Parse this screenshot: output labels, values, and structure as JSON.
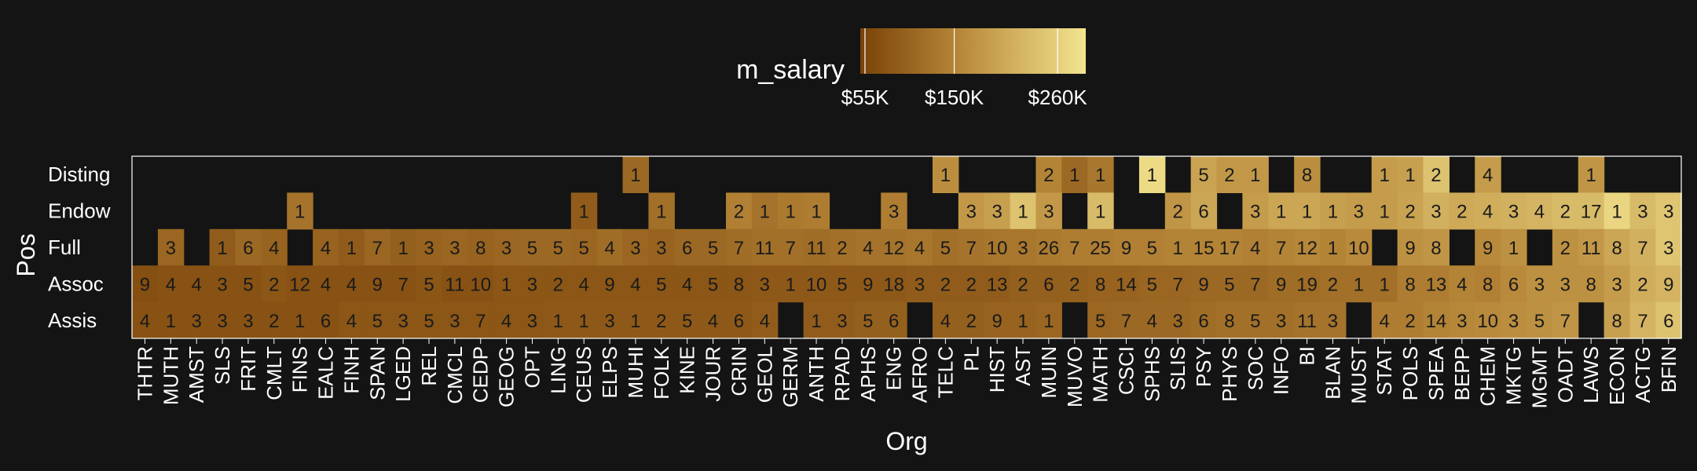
{
  "chart_data": {
    "type": "heatmap",
    "title": "",
    "xlabel": "Org",
    "ylabel": "Pos",
    "legend": {
      "title": "m_salary",
      "position": "top",
      "ticks": [
        {
          "value": 55000,
          "label": "$55K"
        },
        {
          "value": 150000,
          "label": "$150K"
        },
        {
          "value": 260000,
          "label": "$260K"
        }
      ],
      "range": [
        50000,
        290000
      ]
    },
    "colors": {
      "low": "#7a4208",
      "mid": "#b8893a",
      "high": "#f3e48f",
      "background": "#141414",
      "text": "#ffffff",
      "cell_text": "#1a1a1a"
    },
    "x": [
      "THTR",
      "MUTH",
      "AMST",
      "SLS",
      "FRIT",
      "CMLT",
      "FINS",
      "EALC",
      "FINH",
      "SPAN",
      "LGED",
      "REL",
      "CMCL",
      "CEDP",
      "GEOG",
      "OPT",
      "LING",
      "CEUS",
      "ELPS",
      "MUHI",
      "FOLK",
      "KINE",
      "JOUR",
      "CRIN",
      "GEOL",
      "GERM",
      "ANTH",
      "RPAD",
      "APHS",
      "ENG",
      "AFRO",
      "TELC",
      "PL",
      "HIST",
      "AST",
      "MUIN",
      "MUVO",
      "MATH",
      "CSCI",
      "SPHS",
      "SLIS",
      "PSY",
      "PHYS",
      "SOC",
      "INFO",
      "BI",
      "BLAN",
      "MUST",
      "STAT",
      "POLS",
      "SPEA",
      "BEPP",
      "CHEM",
      "MKTG",
      "MGMT",
      "OADT",
      "LAWS",
      "ECON",
      "ACTG",
      "BFIN"
    ],
    "y": [
      "Disting",
      "Endow",
      "Full",
      "Assoc",
      "Assis"
    ],
    "counts": {
      "Disting": [
        null,
        null,
        null,
        null,
        null,
        null,
        null,
        null,
        null,
        null,
        null,
        null,
        null,
        null,
        null,
        null,
        null,
        null,
        null,
        1,
        null,
        null,
        null,
        null,
        null,
        null,
        null,
        null,
        null,
        null,
        null,
        1,
        null,
        null,
        null,
        2,
        1,
        1,
        null,
        1,
        null,
        5,
        2,
        1,
        null,
        8,
        null,
        null,
        1,
        1,
        2,
        null,
        4,
        null,
        null,
        null,
        1,
        null,
        null,
        null
      ],
      "Endow": [
        null,
        null,
        null,
        null,
        null,
        null,
        1,
        null,
        null,
        null,
        null,
        null,
        null,
        null,
        null,
        null,
        null,
        1,
        null,
        null,
        1,
        null,
        null,
        2,
        1,
        1,
        1,
        null,
        null,
        3,
        null,
        null,
        3,
        3,
        1,
        3,
        null,
        1,
        null,
        null,
        2,
        6,
        null,
        3,
        1,
        1,
        1,
        3,
        1,
        2,
        3,
        2,
        4,
        3,
        4,
        2,
        17,
        1,
        3,
        3
      ],
      "Full": [
        null,
        3,
        null,
        1,
        6,
        4,
        null,
        4,
        1,
        7,
        1,
        3,
        3,
        8,
        3,
        5,
        5,
        5,
        4,
        3,
        3,
        6,
        5,
        7,
        11,
        7,
        11,
        2,
        4,
        12,
        4,
        5,
        7,
        10,
        3,
        26,
        7,
        25,
        9,
        5,
        1,
        15,
        17,
        4,
        7,
        12,
        1,
        10,
        null,
        9,
        8,
        null,
        9,
        1,
        null,
        2,
        11,
        8,
        7,
        3
      ],
      "Assoc": [
        9,
        4,
        4,
        3,
        5,
        2,
        12,
        4,
        4,
        9,
        7,
        5,
        11,
        10,
        1,
        3,
        2,
        4,
        9,
        4,
        5,
        4,
        5,
        8,
        3,
        1,
        10,
        5,
        9,
        18,
        3,
        2,
        2,
        13,
        2,
        6,
        2,
        8,
        14,
        5,
        7,
        9,
        5,
        7,
        9,
        19,
        2,
        1,
        1,
        8,
        13,
        4,
        8,
        6,
        3,
        3,
        8,
        3,
        2,
        9
      ],
      "Assis": [
        4,
        1,
        3,
        3,
        3,
        2,
        1,
        6,
        4,
        5,
        3,
        5,
        3,
        7,
        4,
        3,
        1,
        1,
        3,
        1,
        2,
        5,
        4,
        6,
        4,
        null,
        1,
        3,
        5,
        6,
        null,
        4,
        2,
        9,
        1,
        1,
        null,
        5,
        7,
        4,
        3,
        6,
        8,
        5,
        3,
        11,
        3,
        null,
        4,
        2,
        14,
        3,
        10,
        3,
        5,
        7,
        null,
        8,
        7,
        6
      ]
    },
    "salary_k": {
      "Disting": [
        null,
        null,
        null,
        null,
        null,
        null,
        null,
        null,
        null,
        null,
        null,
        null,
        null,
        null,
        null,
        null,
        null,
        null,
        null,
        110,
        null,
        null,
        null,
        null,
        null,
        null,
        null,
        null,
        null,
        null,
        null,
        165,
        null,
        null,
        null,
        150,
        110,
        130,
        null,
        275,
        null,
        195,
        180,
        180,
        null,
        165,
        null,
        null,
        185,
        190,
        240,
        null,
        185,
        null,
        null,
        null,
        175,
        null,
        null,
        null
      ],
      "Endow": [
        null,
        null,
        null,
        null,
        null,
        null,
        125,
        null,
        null,
        null,
        null,
        null,
        null,
        null,
        null,
        null,
        null,
        90,
        null,
        null,
        120,
        null,
        null,
        145,
        125,
        135,
        140,
        null,
        null,
        140,
        null,
        null,
        180,
        190,
        240,
        180,
        null,
        230,
        null,
        null,
        175,
        200,
        null,
        185,
        200,
        200,
        190,
        185,
        185,
        195,
        215,
        205,
        210,
        215,
        220,
        230,
        230,
        270,
        230,
        245
      ],
      "Full": [
        null,
        105,
        null,
        90,
        110,
        100,
        null,
        100,
        90,
        105,
        95,
        100,
        105,
        100,
        105,
        110,
        110,
        105,
        115,
        105,
        100,
        110,
        110,
        115,
        120,
        120,
        115,
        120,
        125,
        125,
        130,
        120,
        125,
        130,
        130,
        135,
        140,
        140,
        145,
        145,
        150,
        150,
        150,
        145,
        150,
        155,
        150,
        160,
        null,
        170,
        175,
        null,
        160,
        170,
        null,
        170,
        180,
        200,
        215,
        245
      ],
      "Assoc": [
        70,
        75,
        75,
        75,
        75,
        80,
        75,
        75,
        75,
        75,
        75,
        80,
        75,
        75,
        80,
        80,
        80,
        80,
        80,
        80,
        80,
        80,
        80,
        80,
        85,
        85,
        85,
        85,
        85,
        85,
        90,
        90,
        90,
        90,
        95,
        95,
        95,
        100,
        100,
        105,
        105,
        110,
        110,
        110,
        115,
        115,
        120,
        120,
        120,
        140,
        140,
        150,
        145,
        160,
        170,
        170,
        170,
        185,
        210,
        220
      ],
      "Assis": [
        75,
        75,
        75,
        75,
        75,
        75,
        75,
        75,
        80,
        80,
        80,
        80,
        80,
        80,
        80,
        80,
        85,
        85,
        85,
        85,
        85,
        85,
        85,
        85,
        90,
        null,
        90,
        90,
        95,
        95,
        null,
        95,
        95,
        100,
        100,
        105,
        null,
        105,
        110,
        110,
        110,
        115,
        120,
        120,
        120,
        125,
        125,
        null,
        140,
        140,
        150,
        155,
        160,
        165,
        170,
        175,
        null,
        190,
        220,
        240
      ]
    }
  }
}
